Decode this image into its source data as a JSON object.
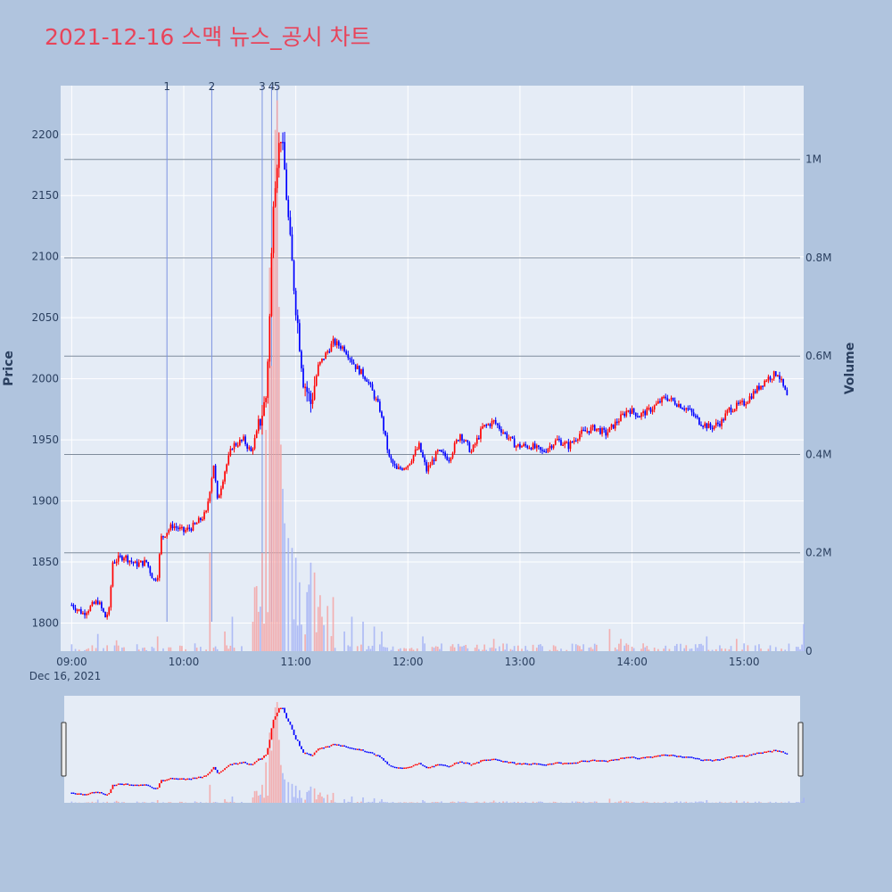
{
  "chart_data": {
    "type": "candlestick",
    "title": "2021-12-16 스맥 뉴스_공시 차트",
    "date_label": "Dec 16, 2021",
    "y_label": "Price",
    "y2_label": "Volume",
    "y_range": [
      1777,
      2240
    ],
    "y_ticks": [
      1800,
      1850,
      1900,
      1950,
      2000,
      2050,
      2100,
      2150,
      2200
    ],
    "y2_range": [
      0,
      1150000
    ],
    "y2_ticks": [
      {
        "value": 0,
        "label": "0"
      },
      {
        "value": 200000,
        "label": "0.2M"
      },
      {
        "value": 400000,
        "label": "0.4M"
      },
      {
        "value": 600000,
        "label": "0.6M"
      },
      {
        "value": 800000,
        "label": "0.8M"
      },
      {
        "value": 1000000,
        "label": "1M"
      }
    ],
    "x_ticks": [
      {
        "minute": 0,
        "label": "09:00"
      },
      {
        "minute": 60,
        "label": "10:00"
      },
      {
        "minute": 120,
        "label": "11:00"
      },
      {
        "minute": 180,
        "label": "12:00"
      },
      {
        "minute": 240,
        "label": "13:00"
      },
      {
        "minute": 300,
        "label": "14:00"
      },
      {
        "minute": 360,
        "label": "15:00"
      }
    ],
    "x_range_minutes": [
      -4,
      390
    ],
    "events": [
      {
        "label": "1",
        "minute": 51
      },
      {
        "label": "2",
        "minute": 75
      },
      {
        "label": "3",
        "minute": 102
      },
      {
        "label": "4",
        "minute": 107
      },
      {
        "label": "5",
        "minute": 110
      }
    ],
    "colors": {
      "up": "#ff0000",
      "down": "#0000ff",
      "event_line": "#7b93e0",
      "title": "#e8445a"
    },
    "price_path": [
      [
        0,
        1815
      ],
      [
        6,
        1808
      ],
      [
        14,
        1818
      ],
      [
        18,
        1805
      ],
      [
        20,
        1810
      ],
      [
        22,
        1850
      ],
      [
        28,
        1855
      ],
      [
        34,
        1848
      ],
      [
        40,
        1850
      ],
      [
        44,
        1835
      ],
      [
        46,
        1840
      ],
      [
        48,
        1870
      ],
      [
        54,
        1880
      ],
      [
        60,
        1875
      ],
      [
        66,
        1880
      ],
      [
        72,
        1890
      ],
      [
        76,
        1930
      ],
      [
        78,
        1900
      ],
      [
        82,
        1925
      ],
      [
        86,
        1945
      ],
      [
        92,
        1950
      ],
      [
        96,
        1940
      ],
      [
        100,
        1960
      ],
      [
        104,
        1985
      ],
      [
        106,
        2050
      ],
      [
        108,
        2150
      ],
      [
        110,
        2180
      ],
      [
        112,
        2200
      ],
      [
        114,
        2170
      ],
      [
        117,
        2110
      ],
      [
        120,
        2060
      ],
      [
        124,
        2000
      ],
      [
        128,
        1980
      ],
      [
        132,
        2010
      ],
      [
        140,
        2030
      ],
      [
        146,
        2025
      ],
      [
        152,
        2010
      ],
      [
        158,
        2000
      ],
      [
        165,
        1975
      ],
      [
        170,
        1935
      ],
      [
        174,
        1925
      ],
      [
        180,
        1930
      ],
      [
        186,
        1945
      ],
      [
        190,
        1925
      ],
      [
        196,
        1940
      ],
      [
        202,
        1935
      ],
      [
        208,
        1955
      ],
      [
        214,
        1940
      ],
      [
        220,
        1960
      ],
      [
        226,
        1965
      ],
      [
        232,
        1955
      ],
      [
        238,
        1945
      ],
      [
        246,
        1945
      ],
      [
        252,
        1940
      ],
      [
        260,
        1950
      ],
      [
        266,
        1945
      ],
      [
        272,
        1955
      ],
      [
        280,
        1960
      ],
      [
        286,
        1955
      ],
      [
        292,
        1965
      ],
      [
        298,
        1975
      ],
      [
        304,
        1970
      ],
      [
        310,
        1975
      ],
      [
        318,
        1985
      ],
      [
        324,
        1980
      ],
      [
        330,
        1975
      ],
      [
        336,
        1965
      ],
      [
        342,
        1960
      ],
      [
        348,
        1965
      ],
      [
        352,
        1975
      ],
      [
        360,
        1980
      ],
      [
        366,
        1990
      ],
      [
        372,
        2000
      ],
      [
        378,
        2005
      ],
      [
        383,
        1985
      ]
    ],
    "volume_spikes": [
      [
        14,
        35000
      ],
      [
        24,
        22000
      ],
      [
        46,
        30000
      ],
      [
        74,
        200000
      ],
      [
        82,
        40000
      ],
      [
        86,
        70000
      ],
      [
        98,
        130000
      ],
      [
        100,
        80000
      ],
      [
        102,
        200000
      ],
      [
        104,
        450000
      ],
      [
        106,
        780000
      ],
      [
        107,
        580000
      ],
      [
        108,
        900000
      ],
      [
        109,
        1060000
      ],
      [
        110,
        1120000
      ],
      [
        111,
        700000
      ],
      [
        112,
        420000
      ],
      [
        113,
        330000
      ],
      [
        114,
        260000
      ],
      [
        116,
        230000
      ],
      [
        118,
        210000
      ],
      [
        120,
        190000
      ],
      [
        122,
        140000
      ],
      [
        126,
        120000
      ],
      [
        128,
        180000
      ],
      [
        130,
        160000
      ],
      [
        132,
        90000
      ],
      [
        134,
        70000
      ],
      [
        140,
        110000
      ],
      [
        146,
        40000
      ],
      [
        150,
        70000
      ],
      [
        156,
        60000
      ],
      [
        162,
        50000
      ],
      [
        166,
        40000
      ],
      [
        188,
        30000
      ],
      [
        226,
        25000
      ],
      [
        288,
        45000
      ],
      [
        294,
        25000
      ],
      [
        340,
        30000
      ],
      [
        356,
        25000
      ],
      [
        392,
        55000
      ]
    ]
  }
}
